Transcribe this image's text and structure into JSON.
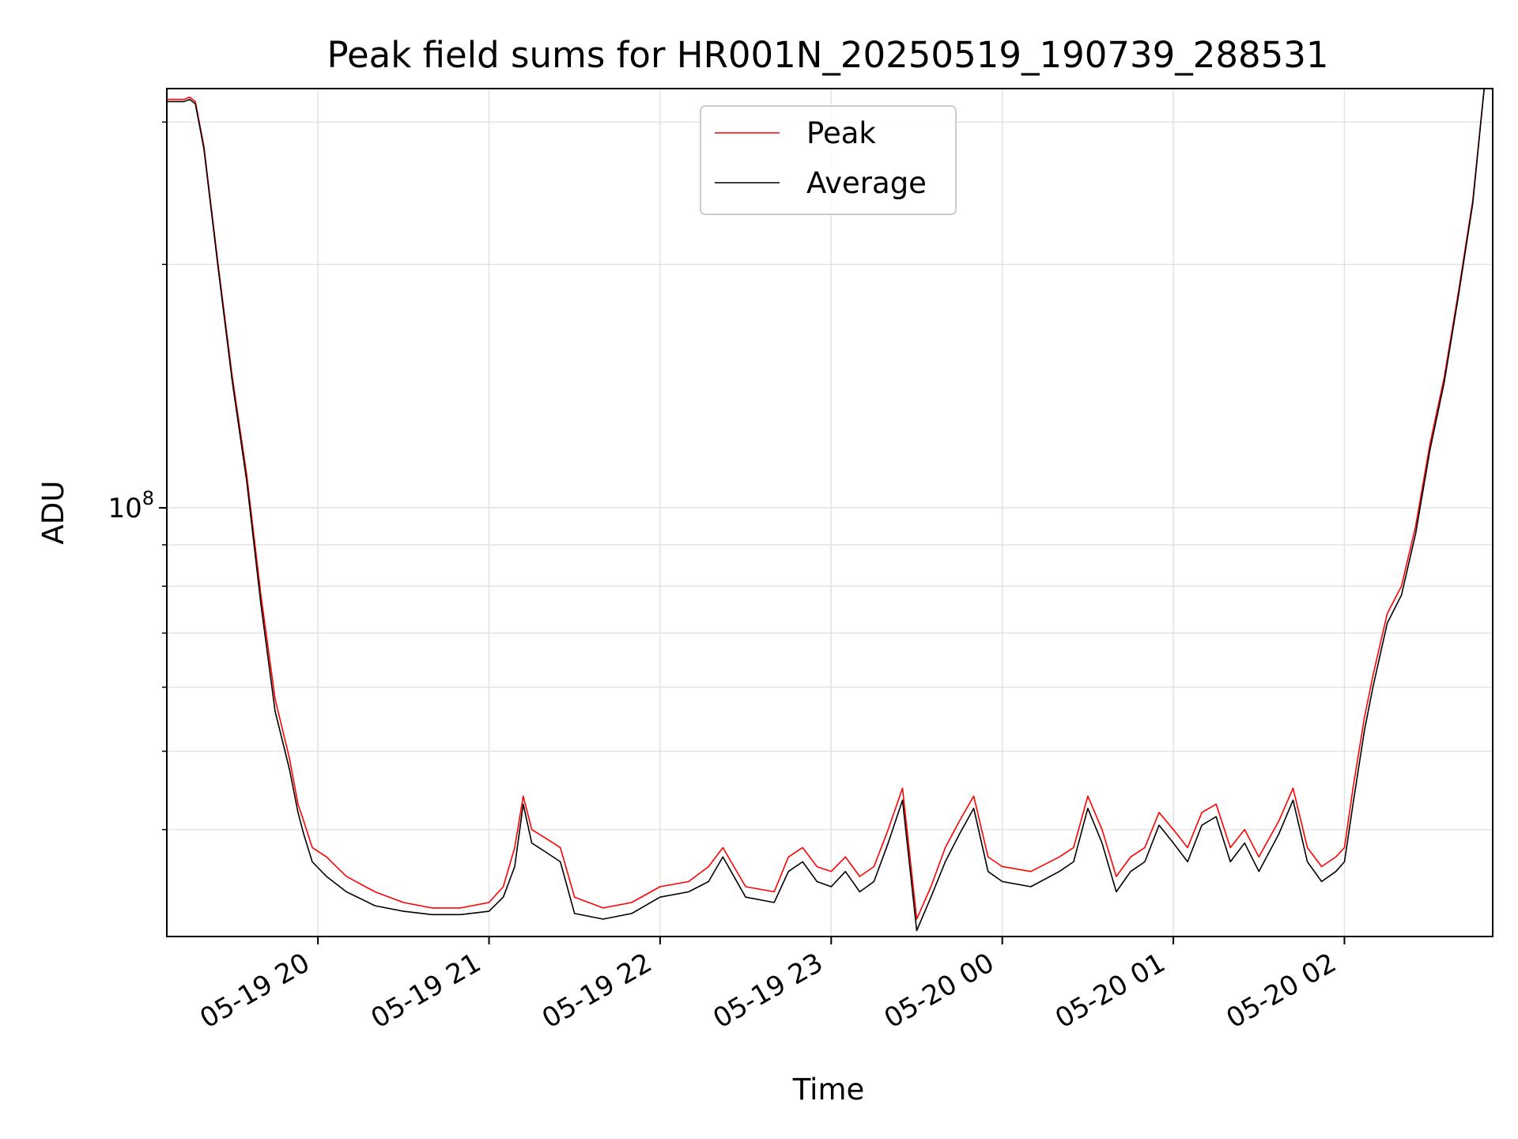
{
  "chart_data": {
    "type": "line",
    "title": "Peak field sums for HR001N_20250519_190739_288531",
    "xlabel": "Time",
    "ylabel": "ADU",
    "yscale": "log",
    "ylim": [
      29500000,
      330000000
    ],
    "xlim": [
      "2025-05-19 19:07",
      "2025-05-20 02:52"
    ],
    "grid": true,
    "legend_position": "upper center",
    "x_ticks": [
      "05-19 20",
      "05-19 21",
      "05-19 22",
      "05-19 23",
      "05-20 00",
      "05-20 01",
      "05-20 02"
    ],
    "y_major_tick": {
      "base": "10",
      "exponent": "8",
      "value": 100000000
    },
    "y_minor_ticks": [
      40000000,
      50000000,
      60000000,
      70000000,
      80000000,
      90000000,
      200000000,
      300000000
    ],
    "series": [
      {
        "name": "Peak",
        "color": "#ff0000",
        "x": [
          "2025-05-19 19:07",
          "2025-05-19 19:13",
          "2025-05-19 19:15",
          "2025-05-19 19:17",
          "2025-05-19 19:20",
          "2025-05-19 19:25",
          "2025-05-19 19:30",
          "2025-05-19 19:35",
          "2025-05-19 19:40",
          "2025-05-19 19:45",
          "2025-05-19 19:50",
          "2025-05-19 19:53",
          "2025-05-19 19:55",
          "2025-05-19 19:58",
          "2025-05-19 20:03",
          "2025-05-19 20:10",
          "2025-05-19 20:20",
          "2025-05-19 20:30",
          "2025-05-19 20:40",
          "2025-05-19 20:50",
          "2025-05-19 21:00",
          "2025-05-19 21:05",
          "2025-05-19 21:09",
          "2025-05-19 21:12",
          "2025-05-19 21:15",
          "2025-05-19 21:20",
          "2025-05-19 21:25",
          "2025-05-19 21:30",
          "2025-05-19 21:40",
          "2025-05-19 21:50",
          "2025-05-19 22:00",
          "2025-05-19 22:10",
          "2025-05-19 22:17",
          "2025-05-19 22:22",
          "2025-05-19 22:30",
          "2025-05-19 22:40",
          "2025-05-19 22:45",
          "2025-05-19 22:50",
          "2025-05-19 22:55",
          "2025-05-19 23:00",
          "2025-05-19 23:05",
          "2025-05-19 23:10",
          "2025-05-19 23:15",
          "2025-05-19 23:20",
          "2025-05-19 23:25",
          "2025-05-19 23:30",
          "2025-05-19 23:35",
          "2025-05-19 23:40",
          "2025-05-19 23:45",
          "2025-05-19 23:50",
          "2025-05-19 23:55",
          "2025-05-20 00:00",
          "2025-05-20 00:10",
          "2025-05-20 00:20",
          "2025-05-20 00:25",
          "2025-05-20 00:30",
          "2025-05-20 00:35",
          "2025-05-20 00:40",
          "2025-05-20 00:45",
          "2025-05-20 00:50",
          "2025-05-20 00:55",
          "2025-05-20 01:00",
          "2025-05-20 01:05",
          "2025-05-20 01:10",
          "2025-05-20 01:15",
          "2025-05-20 01:20",
          "2025-05-20 01:25",
          "2025-05-20 01:30",
          "2025-05-20 01:37",
          "2025-05-20 01:42",
          "2025-05-20 01:47",
          "2025-05-20 01:52",
          "2025-05-20 01:57",
          "2025-05-20 02:00",
          "2025-05-20 02:03",
          "2025-05-20 02:07",
          "2025-05-20 02:10",
          "2025-05-20 02:15",
          "2025-05-20 02:20",
          "2025-05-20 02:25",
          "2025-05-20 02:30",
          "2025-05-20 02:35",
          "2025-05-20 02:40",
          "2025-05-20 02:45",
          "2025-05-20 02:49"
        ],
        "values": [
          320000000,
          320000000,
          322000000,
          318000000,
          280000000,
          200000000,
          145000000,
          110000000,
          78000000,
          58000000,
          49000000,
          43000000,
          41000000,
          38000000,
          37000000,
          35000000,
          33500000,
          32500000,
          32000000,
          32000000,
          32500000,
          34000000,
          38000000,
          44000000,
          40000000,
          39000000,
          38000000,
          33000000,
          32000000,
          32500000,
          34000000,
          34500000,
          36000000,
          38000000,
          34000000,
          33500000,
          37000000,
          38000000,
          36000000,
          35500000,
          37000000,
          35000000,
          36000000,
          40000000,
          45000000,
          31000000,
          34000000,
          38000000,
          41000000,
          44000000,
          37000000,
          36000000,
          35500000,
          37000000,
          38000000,
          44000000,
          40000000,
          35000000,
          37000000,
          38000000,
          42000000,
          40000000,
          38000000,
          42000000,
          43000000,
          38000000,
          40000000,
          37000000,
          41000000,
          45000000,
          38000000,
          36000000,
          37000000,
          38000000,
          45000000,
          55000000,
          62000000,
          74000000,
          80000000,
          95000000,
          120000000,
          145000000,
          185000000,
          240000000,
          330000000
        ]
      },
      {
        "name": "Average",
        "color": "#000000",
        "x": [
          "2025-05-19 19:07",
          "2025-05-19 19:13",
          "2025-05-19 19:15",
          "2025-05-19 19:17",
          "2025-05-19 19:20",
          "2025-05-19 19:25",
          "2025-05-19 19:30",
          "2025-05-19 19:35",
          "2025-05-19 19:40",
          "2025-05-19 19:45",
          "2025-05-19 19:50",
          "2025-05-19 19:53",
          "2025-05-19 19:55",
          "2025-05-19 19:58",
          "2025-05-19 20:03",
          "2025-05-19 20:10",
          "2025-05-19 20:20",
          "2025-05-19 20:30",
          "2025-05-19 20:40",
          "2025-05-19 20:50",
          "2025-05-19 21:00",
          "2025-05-19 21:05",
          "2025-05-19 21:09",
          "2025-05-19 21:12",
          "2025-05-19 21:15",
          "2025-05-19 21:20",
          "2025-05-19 21:25",
          "2025-05-19 21:30",
          "2025-05-19 21:40",
          "2025-05-19 21:50",
          "2025-05-19 22:00",
          "2025-05-19 22:10",
          "2025-05-19 22:17",
          "2025-05-19 22:22",
          "2025-05-19 22:30",
          "2025-05-19 22:40",
          "2025-05-19 22:45",
          "2025-05-19 22:50",
          "2025-05-19 22:55",
          "2025-05-19 23:00",
          "2025-05-19 23:05",
          "2025-05-19 23:10",
          "2025-05-19 23:15",
          "2025-05-19 23:20",
          "2025-05-19 23:25",
          "2025-05-19 23:30",
          "2025-05-19 23:35",
          "2025-05-19 23:40",
          "2025-05-19 23:45",
          "2025-05-19 23:50",
          "2025-05-19 23:55",
          "2025-05-20 00:00",
          "2025-05-20 00:10",
          "2025-05-20 00:20",
          "2025-05-20 00:25",
          "2025-05-20 00:30",
          "2025-05-20 00:35",
          "2025-05-20 00:40",
          "2025-05-20 00:45",
          "2025-05-20 00:50",
          "2025-05-20 00:55",
          "2025-05-20 01:00",
          "2025-05-20 01:05",
          "2025-05-20 01:10",
          "2025-05-20 01:15",
          "2025-05-20 01:20",
          "2025-05-20 01:25",
          "2025-05-20 01:30",
          "2025-05-20 01:37",
          "2025-05-20 01:42",
          "2025-05-20 01:47",
          "2025-05-20 01:52",
          "2025-05-20 01:57",
          "2025-05-20 02:00",
          "2025-05-20 02:03",
          "2025-05-20 02:07",
          "2025-05-20 02:10",
          "2025-05-20 02:15",
          "2025-05-20 02:20",
          "2025-05-20 02:25",
          "2025-05-20 02:30",
          "2025-05-20 02:35",
          "2025-05-20 02:40",
          "2025-05-20 02:45",
          "2025-05-20 02:49"
        ],
        "values": [
          318000000,
          318000000,
          320000000,
          316000000,
          278000000,
          198000000,
          143000000,
          108000000,
          76000000,
          56000000,
          47500000,
          42000000,
          39500000,
          36500000,
          35000000,
          33500000,
          32200000,
          31700000,
          31400000,
          31400000,
          31700000,
          33000000,
          36000000,
          43000000,
          38500000,
          37500000,
          36500000,
          31500000,
          31000000,
          31500000,
          33000000,
          33500000,
          34500000,
          37000000,
          33000000,
          32500000,
          35500000,
          36500000,
          34500000,
          34000000,
          35500000,
          33500000,
          34500000,
          38500000,
          43500000,
          30000000,
          33000000,
          36500000,
          39500000,
          42500000,
          35500000,
          34500000,
          34000000,
          35500000,
          36500000,
          42500000,
          38500000,
          33500000,
          35500000,
          36500000,
          40500000,
          38500000,
          36500000,
          40500000,
          41500000,
          36500000,
          38500000,
          35500000,
          39500000,
          43500000,
          36500000,
          34500000,
          35500000,
          36500000,
          43000000,
          53000000,
          60000000,
          72000000,
          78000000,
          93000000,
          118000000,
          143000000,
          183000000,
          238000000,
          330000000
        ]
      }
    ]
  }
}
